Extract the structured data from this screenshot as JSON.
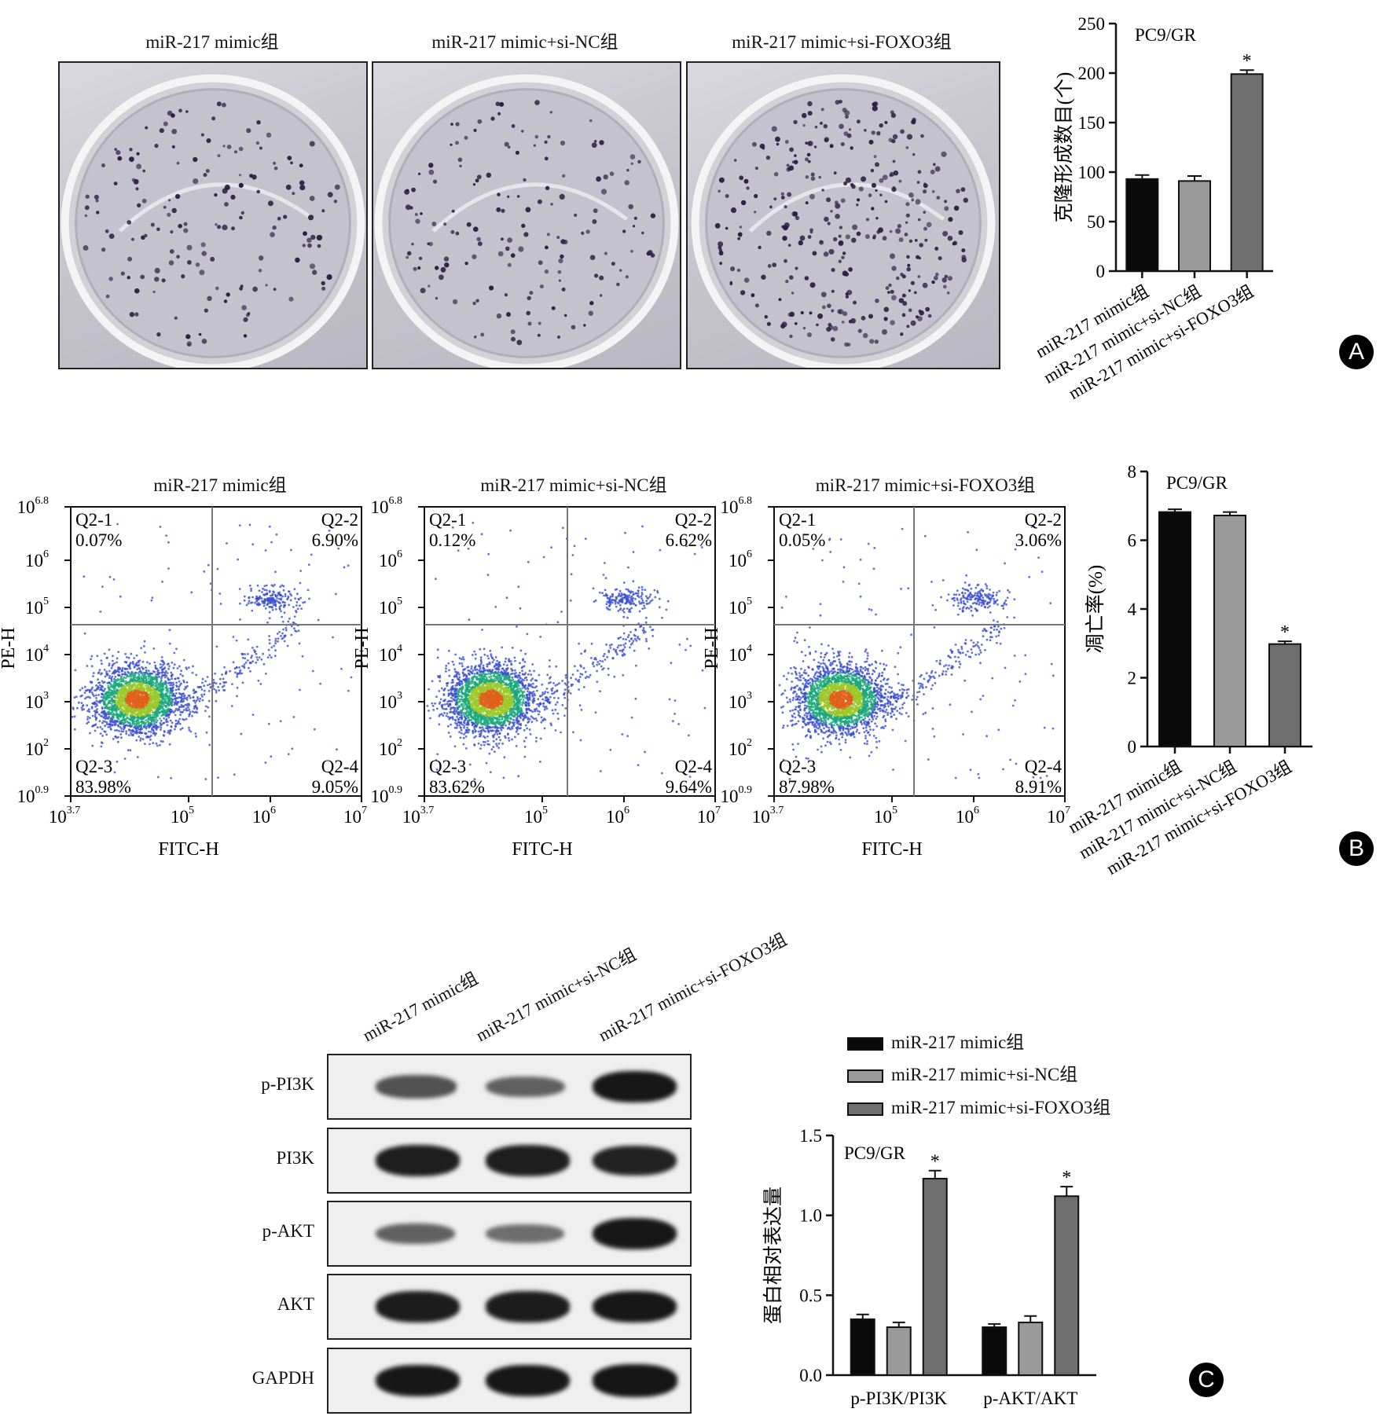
{
  "groups": [
    "miR-217 mimic组",
    "miR-217 mimic+si-NC组",
    "miR-217 mimic+si-FOXO3组"
  ],
  "panel_a": {
    "badge": "A",
    "plate_titles": [
      "miR-217 mimic组",
      "miR-217 mimic+si-NC组",
      "miR-217 mimic+si-FOXO3组"
    ],
    "chart_data": {
      "type": "bar",
      "title": "PC9/GR",
      "ylabel": "克隆形成数目(个)",
      "ylim": [
        0,
        250
      ],
      "yticks": [
        "0",
        "50",
        "100",
        "150",
        "200",
        "250"
      ],
      "categories": [
        "miR-217 mimic组",
        "miR-217 mimic+si-NC组",
        "miR-217 mimic+si-FOXO3组"
      ],
      "values": [
        93,
        91,
        199
      ],
      "errors": [
        4,
        5,
        4
      ],
      "significance": [
        "",
        "",
        "*"
      ],
      "colors": [
        "#0a0a0a",
        "#9a9a9a",
        "#6e6e6e"
      ]
    }
  },
  "panel_b": {
    "badge": "B",
    "flow_plots": [
      {
        "title": "miR-217 mimic组",
        "q1_label": "Q2-1",
        "q1": "0.07%",
        "q2_label": "Q2-2",
        "q2": "6.90%",
        "q3_label": "Q2-3",
        "q3": "83.98%",
        "q4_label": "Q2-4",
        "q4": "9.05%"
      },
      {
        "title": "miR-217 mimic+si-NC组",
        "q1_label": "Q2-1",
        "q1": "0.12%",
        "q2_label": "Q2-2",
        "q2": "6.62%",
        "q3_label": "Q2-3",
        "q3": "83.62%",
        "q4_label": "Q2-4",
        "q4": "9.64%"
      },
      {
        "title": "miR-217 mimic+si-FOXO3组",
        "q1_label": "Q2-1",
        "q1": "0.05%",
        "q2_label": "Q2-2",
        "q2": "3.06%",
        "q3_label": "Q2-3",
        "q3": "87.98%",
        "q4_label": "Q2-4",
        "q4": "8.91%"
      }
    ],
    "flow_axes": {
      "xlabel": "FITC-H",
      "ylabel": "PE-H",
      "xticks": [
        {
          "base": "10",
          "exp": "3.7"
        },
        {
          "base": "10",
          "exp": "5"
        },
        {
          "base": "10",
          "exp": "6"
        },
        {
          "base": "10",
          "exp": "7"
        }
      ],
      "yticks": [
        {
          "base": "10",
          "exp": "0.9"
        },
        {
          "base": "10",
          "exp": "2"
        },
        {
          "base": "10",
          "exp": "3"
        },
        {
          "base": "10",
          "exp": "4"
        },
        {
          "base": "10",
          "exp": "5"
        },
        {
          "base": "10",
          "exp": "6"
        },
        {
          "base": "10",
          "exp": "6.8"
        }
      ]
    },
    "chart_data": {
      "type": "bar",
      "title": "PC9/GR",
      "ylabel": "凋亡率(%)",
      "ylim": [
        0,
        8
      ],
      "yticks": [
        "0",
        "2",
        "4",
        "6",
        "8"
      ],
      "categories": [
        "miR-217 mimic组",
        "miR-217 mimic+si-NC组",
        "miR-217 mimic+si-FOXO3组"
      ],
      "values": [
        6.82,
        6.72,
        2.98
      ],
      "errors": [
        0.08,
        0.1,
        0.08
      ],
      "significance": [
        "",
        "",
        "*"
      ],
      "colors": [
        "#0a0a0a",
        "#9a9a9a",
        "#6e6e6e"
      ]
    }
  },
  "panel_c": {
    "badge": "C",
    "lane_labels": [
      "miR-217 mimic组",
      "miR-217 mimic+si-NC组",
      "miR-217 mimic+si-FOXO3组"
    ],
    "blot_rows": [
      {
        "label": "p-PI3K",
        "intensity": [
          0.55,
          0.45,
          0.95
        ]
      },
      {
        "label": "PI3K",
        "intensity": [
          0.9,
          0.9,
          0.88
        ]
      },
      {
        "label": "p-AKT",
        "intensity": [
          0.45,
          0.35,
          0.95
        ]
      },
      {
        "label": "AKT",
        "intensity": [
          0.92,
          0.92,
          0.95
        ]
      },
      {
        "label": "GAPDH",
        "intensity": [
          0.95,
          0.95,
          0.97
        ]
      }
    ],
    "legend": [
      "miR-217 mimic组",
      "miR-217 mimic+si-NC组",
      "miR-217 mimic+si-FOXO3组"
    ],
    "chart_data": {
      "type": "bar",
      "title": "PC9/GR",
      "ylabel": "蛋白相对表达量",
      "ylim": [
        0,
        1.5
      ],
      "yticks": [
        "0.0",
        "0.5",
        "1.0",
        "1.5"
      ],
      "categories": [
        "p-PI3K/PI3K",
        "p-AKT/AKT"
      ],
      "series": [
        {
          "name": "miR-217 mimic组",
          "values": [
            0.35,
            0.3
          ],
          "errors": [
            0.03,
            0.02
          ],
          "significance": [
            "",
            ""
          ],
          "color": "#0a0a0a"
        },
        {
          "name": "miR-217 mimic+si-NC组",
          "values": [
            0.3,
            0.33
          ],
          "errors": [
            0.03,
            0.04
          ],
          "significance": [
            "",
            ""
          ],
          "color": "#9a9a9a"
        },
        {
          "name": "miR-217 mimic+si-FOXO3组",
          "values": [
            1.23,
            1.12
          ],
          "errors": [
            0.05,
            0.06
          ],
          "significance": [
            "*",
            "*"
          ],
          "color": "#6e6e6e"
        }
      ]
    }
  }
}
